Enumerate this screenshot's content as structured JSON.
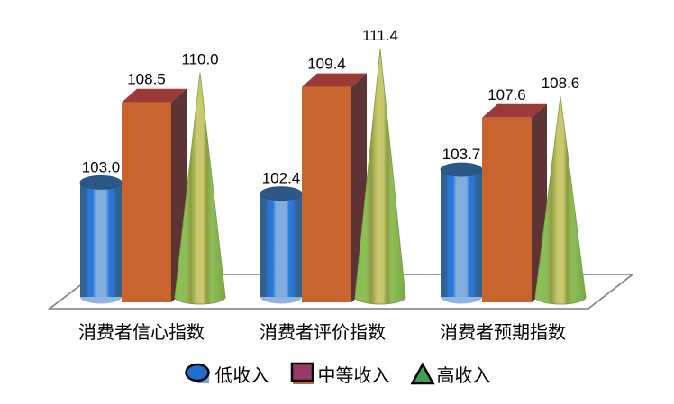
{
  "chart_data": {
    "type": "bar",
    "style": "3d-grouped-shapes",
    "title": "",
    "xlabel": "",
    "ylabel": "",
    "axis_visible": false,
    "grid": false,
    "legend_position": "bottom",
    "ylim": [
      96.8,
      112
    ],
    "value_label_decimals": 1,
    "categories": [
      "消费者信心指数",
      "消费者评价指数",
      "消费者预期指数"
    ],
    "series": [
      {
        "name": "低收入",
        "shape": "cylinder",
        "values": [
          103.0,
          102.4,
          103.7
        ],
        "colors": {
          "body_dark": "#31618F",
          "body_highlight": "#2B76D6",
          "body_light": "#7FAEDE",
          "top": "#2B5887",
          "bottom": "#8FB4E0"
        }
      },
      {
        "name": "中等收入",
        "shape": "box",
        "values": [
          108.5,
          109.4,
          107.6
        ],
        "colors": {
          "front": "#C8652F",
          "top": "#9B3B38",
          "side": "#5E3333"
        }
      },
      {
        "name": "高收入",
        "shape": "cone",
        "values": [
          110.0,
          111.4,
          108.6
        ],
        "colors": {
          "green": "#8CBE58",
          "yellow": "#C9C86C",
          "olive": "#8F9A40",
          "dark_green": "#79A943",
          "base": "#A5CE7E",
          "edge": "#7C9B45"
        }
      }
    ],
    "floor": {
      "fill": "#FFFFFF",
      "stroke": "#7F7F7F"
    }
  },
  "legend": {
    "items": [
      {
        "label": "低收入",
        "marker": "ellipse",
        "fill": "#1F6FD0",
        "shadow": "#6FA8DC"
      },
      {
        "label": "中等收入",
        "marker": "square",
        "fill": "#9B3A66",
        "shadow": "#C8652F"
      },
      {
        "label": "高收入",
        "marker": "triangle",
        "fill": "#3FA052",
        "shadow": ""
      }
    ]
  }
}
